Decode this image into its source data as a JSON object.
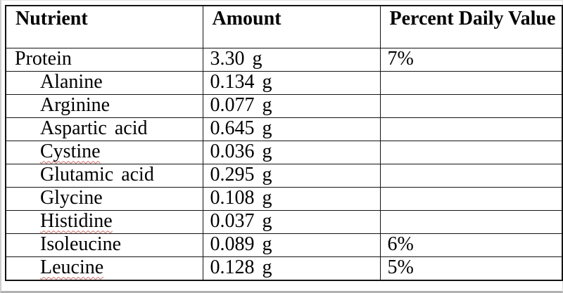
{
  "page": {
    "background": "#ffffff",
    "edge_color": "#b2b2b2"
  },
  "table": {
    "border_color": "#141414",
    "squiggle_color": "#cd6a63",
    "columns": [
      {
        "id": "nutrient",
        "label": "Nutrient"
      },
      {
        "id": "amount",
        "label": "Amount"
      },
      {
        "id": "percent_daily_value",
        "label": "Percent Daily Value"
      }
    ],
    "rows": [
      {
        "nutrient": "Protein",
        "amount": "3.30 g",
        "percent_daily_value": "7%",
        "indented": false,
        "spellcheck_underline": false
      },
      {
        "nutrient": "Alanine",
        "amount": "0.134 g",
        "percent_daily_value": "",
        "indented": true,
        "spellcheck_underline": false
      },
      {
        "nutrient": "Arginine",
        "amount": "0.077 g",
        "percent_daily_value": "",
        "indented": true,
        "spellcheck_underline": false
      },
      {
        "nutrient": "Aspartic acid",
        "amount": "0.645 g",
        "percent_daily_value": "",
        "indented": true,
        "spellcheck_underline": false
      },
      {
        "nutrient": "Cystine",
        "amount": "0.036 g",
        "percent_daily_value": "",
        "indented": true,
        "spellcheck_underline": true
      },
      {
        "nutrient": "Glutamic acid",
        "amount": "0.295 g",
        "percent_daily_value": "",
        "indented": true,
        "spellcheck_underline": false
      },
      {
        "nutrient": "Glycine",
        "amount": "0.108 g",
        "percent_daily_value": "",
        "indented": true,
        "spellcheck_underline": false
      },
      {
        "nutrient": "Histidine",
        "amount": "0.037 g",
        "percent_daily_value": "",
        "indented": true,
        "spellcheck_underline": true
      },
      {
        "nutrient": "Isoleucine",
        "amount": "0.089 g",
        "percent_daily_value": "6%",
        "indented": true,
        "spellcheck_underline": false
      },
      {
        "nutrient": "Leucine",
        "amount": "0.128 g",
        "percent_daily_value": "5%",
        "indented": true,
        "spellcheck_underline": true
      }
    ]
  }
}
